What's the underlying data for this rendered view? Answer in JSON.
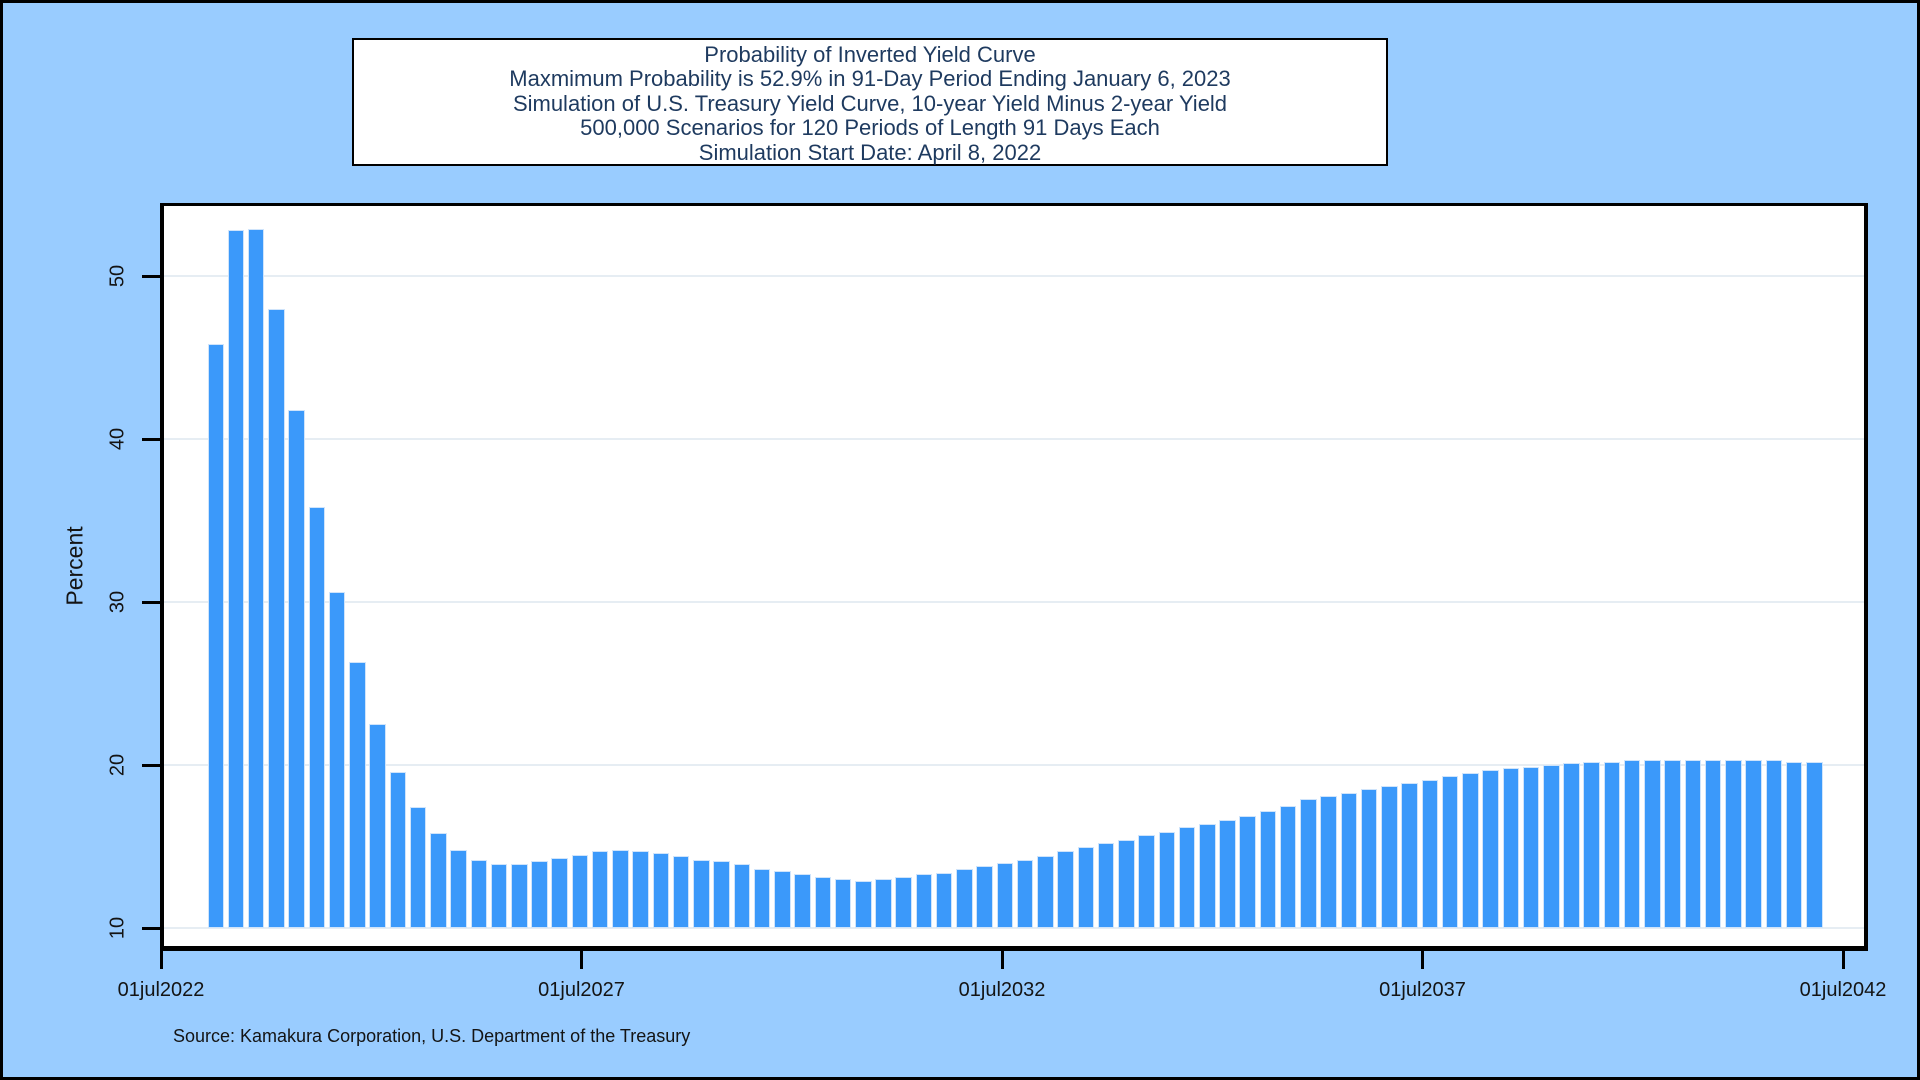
{
  "colors": {
    "background": "#99ccff",
    "plot_background": "#ffffff",
    "bar_fill": "#3b99fa",
    "bar_edge": "#cfe4fb",
    "gridline": "#e6edf3",
    "title_text": "#1e3a5f",
    "axis_text": "#141414",
    "frame_border": "#000000"
  },
  "title": {
    "lines": [
      "Probability of Inverted Yield Curve",
      "Maxmimum Probability is 52.9% in 91-Day Period Ending January 6, 2023",
      "Simulation of U.S. Treasury Yield Curve, 10-year Yield Minus 2-year Yield",
      "500,000 Scenarios for 120 Periods of Length 91 Days Each",
      "Simulation Start Date: April 8, 2022"
    ]
  },
  "source_note": "Source: Kamakura Corporation, U.S. Department of the Treasury",
  "chart_data": {
    "type": "bar",
    "title": "Probability of Inverted Yield Curve",
    "ylabel": "Percent",
    "xlabel": "",
    "ylim": [
      10,
      54.3
    ],
    "grid": "horizontal",
    "y_ticks": [
      10,
      20,
      30,
      40,
      50
    ],
    "x_tick_labels": [
      "01jul2022",
      "01jul2027",
      "01jul2032",
      "01jul2037",
      "01jul2042"
    ],
    "x_description": "Consecutive 91-day simulation periods from April 8, 2022 (quarterly bars, Jul 2022 - Jul 2042)",
    "max_probability_pct": 52.9,
    "max_period_ending": "January 6, 2023",
    "values": [
      45.8,
      52.8,
      52.9,
      48.0,
      41.8,
      35.8,
      30.6,
      26.3,
      22.5,
      19.6,
      17.4,
      15.8,
      14.8,
      14.2,
      13.9,
      13.9,
      14.1,
      14.3,
      14.5,
      14.7,
      14.8,
      14.7,
      14.6,
      14.4,
      14.2,
      14.1,
      13.9,
      13.6,
      13.5,
      13.3,
      13.1,
      13.0,
      12.9,
      13.0,
      13.1,
      13.3,
      13.4,
      13.6,
      13.8,
      14.0,
      14.2,
      14.4,
      14.7,
      15.0,
      15.2,
      15.4,
      15.7,
      15.9,
      16.2,
      16.4,
      16.6,
      16.9,
      17.2,
      17.5,
      17.9,
      18.1,
      18.3,
      18.5,
      18.7,
      18.9,
      19.1,
      19.3,
      19.5,
      19.7,
      19.8,
      19.9,
      20.0,
      20.1,
      20.2,
      20.2,
      20.3,
      20.3,
      20.3,
      20.3,
      20.3,
      20.3,
      20.3,
      20.3,
      20.2,
      20.2
    ]
  }
}
